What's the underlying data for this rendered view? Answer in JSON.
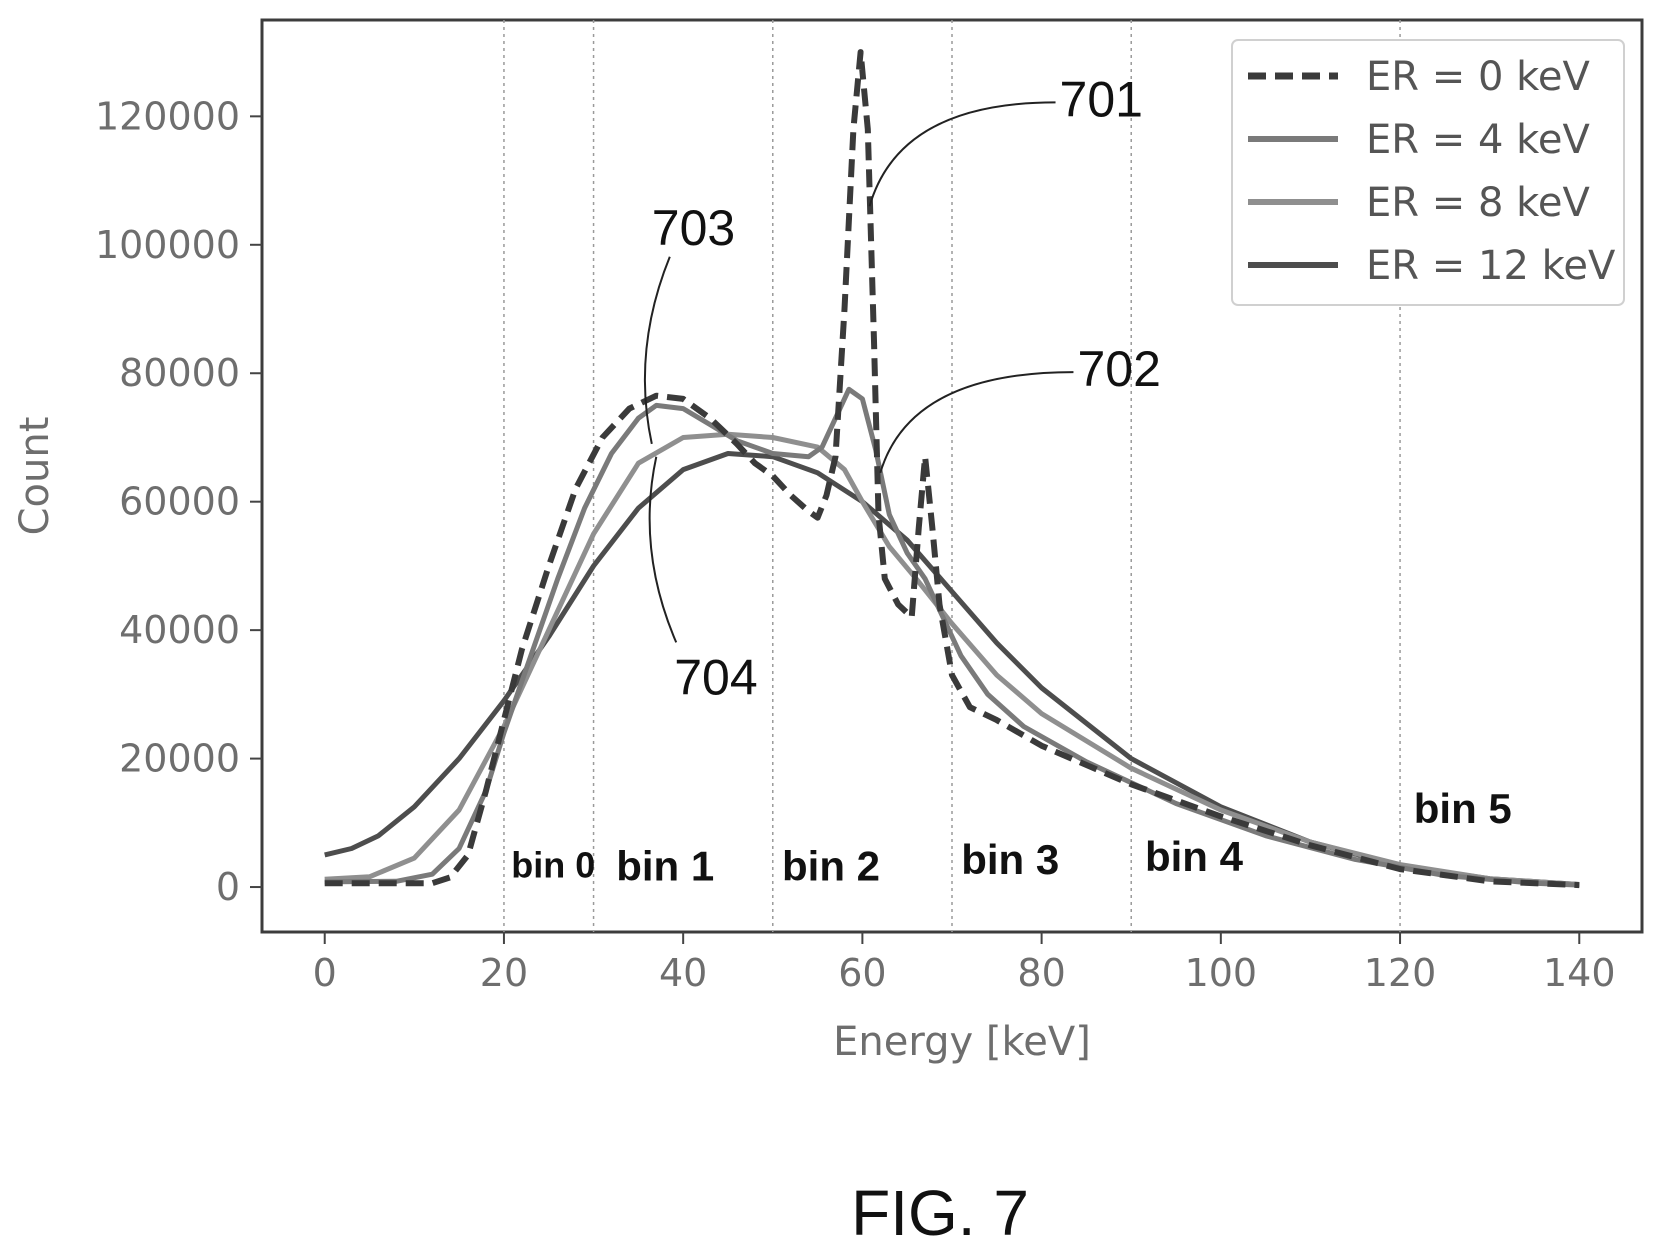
{
  "figure_caption": "FIG. 7",
  "chart_data": {
    "type": "line",
    "title": "",
    "xlabel": "Energy [keV]",
    "ylabel": "Count",
    "xlim": [
      -7,
      147
    ],
    "ylim": [
      -7000,
      135000
    ],
    "x_ticks": [
      0,
      20,
      40,
      60,
      80,
      100,
      120,
      140
    ],
    "y_ticks": [
      0,
      20000,
      40000,
      60000,
      80000,
      100000,
      120000
    ],
    "grid": false,
    "legend_placement": "top-right",
    "bin_boundaries": [
      20,
      30,
      50,
      70,
      90,
      120
    ],
    "bin_labels": [
      {
        "label": "bin 0",
        "x": 25.5,
        "y": 1500
      },
      {
        "label": "bin 1",
        "x": 38,
        "y": 1000
      },
      {
        "label": "bin 2",
        "x": 56.5,
        "y": 1000
      },
      {
        "label": "bin 3",
        "x": 76.5,
        "y": 2000
      },
      {
        "label": "bin 4",
        "x": 97,
        "y": 2500
      },
      {
        "label": "bin 5",
        "x": 127,
        "y": 10000
      }
    ],
    "annotations": [
      {
        "label": "701",
        "x": 82,
        "y": 120000,
        "target_x": 60.8,
        "target_y": 106000
      },
      {
        "label": "702",
        "x": 84,
        "y": 78000,
        "target_x": 62,
        "target_y": 64500
      },
      {
        "label": "703",
        "x": 36.5,
        "y": 100000,
        "target_x": 36.5,
        "target_y": 69000
      },
      {
        "label": "704",
        "x": 39,
        "y": 30000,
        "target_x": 37,
        "target_y": 67000
      }
    ],
    "series": [
      {
        "name": "ER = 0 keV",
        "style": "dashed",
        "color": "#3a3a3a",
        "points": [
          [
            0,
            600
          ],
          [
            12,
            600
          ],
          [
            14,
            1500
          ],
          [
            16,
            5000
          ],
          [
            18,
            15000
          ],
          [
            20,
            26000
          ],
          [
            22,
            37000
          ],
          [
            25,
            50000
          ],
          [
            28,
            62000
          ],
          [
            31,
            70000
          ],
          [
            34,
            74500
          ],
          [
            37,
            76500
          ],
          [
            40,
            76000
          ],
          [
            43,
            73000
          ],
          [
            46,
            69000
          ],
          [
            48,
            66000
          ],
          [
            50,
            64000
          ],
          [
            52,
            61000
          ],
          [
            54,
            58500
          ],
          [
            55,
            57500
          ],
          [
            56,
            61000
          ],
          [
            57,
            67000
          ],
          [
            58,
            90000
          ],
          [
            59,
            118000
          ],
          [
            59.8,
            130000
          ],
          [
            60.6,
            118000
          ],
          [
            61.3,
            85000
          ],
          [
            61.8,
            58000
          ],
          [
            62.5,
            48000
          ],
          [
            64,
            44000
          ],
          [
            65.5,
            42000
          ],
          [
            66.3,
            56000
          ],
          [
            67,
            67000
          ],
          [
            67.8,
            56000
          ],
          [
            68.6,
            44000
          ],
          [
            70,
            33000
          ],
          [
            72,
            28000
          ],
          [
            75,
            26000
          ],
          [
            80,
            22000
          ],
          [
            90,
            16000
          ],
          [
            100,
            11000
          ],
          [
            110,
            6500
          ],
          [
            120,
            2800
          ],
          [
            130,
            900
          ],
          [
            140,
            300
          ]
        ]
      },
      {
        "name": "ER = 4 keV",
        "style": "solid",
        "color": "#7a7a7a",
        "points": [
          [
            0,
            800
          ],
          [
            8,
            900
          ],
          [
            12,
            2000
          ],
          [
            15,
            6000
          ],
          [
            18,
            15000
          ],
          [
            20,
            24000
          ],
          [
            23,
            36000
          ],
          [
            26,
            48000
          ],
          [
            29,
            59000
          ],
          [
            32,
            67500
          ],
          [
            35,
            73000
          ],
          [
            37,
            75000
          ],
          [
            40,
            74500
          ],
          [
            43,
            72000
          ],
          [
            46,
            69500
          ],
          [
            50,
            67500
          ],
          [
            54,
            67000
          ],
          [
            55.5,
            68500
          ],
          [
            57,
            73000
          ],
          [
            58.5,
            77500
          ],
          [
            60,
            76000
          ],
          [
            61.5,
            68000
          ],
          [
            63,
            58000
          ],
          [
            65,
            52000
          ],
          [
            67,
            48000
          ],
          [
            69,
            42000
          ],
          [
            71,
            36000
          ],
          [
            74,
            30000
          ],
          [
            78,
            25000
          ],
          [
            85,
            19500
          ],
          [
            95,
            13000
          ],
          [
            105,
            8000
          ],
          [
            115,
            4300
          ],
          [
            125,
            1800
          ],
          [
            135,
            600
          ],
          [
            140,
            300
          ]
        ]
      },
      {
        "name": "ER = 8 keV",
        "style": "solid",
        "color": "#8f8f8f",
        "points": [
          [
            0,
            1200
          ],
          [
            5,
            1600
          ],
          [
            10,
            4500
          ],
          [
            15,
            12000
          ],
          [
            20,
            25000
          ],
          [
            25,
            40000
          ],
          [
            30,
            55000
          ],
          [
            35,
            66000
          ],
          [
            40,
            70000
          ],
          [
            45,
            70500
          ],
          [
            50,
            70000
          ],
          [
            55,
            68500
          ],
          [
            58,
            65000
          ],
          [
            60,
            60000
          ],
          [
            63,
            53000
          ],
          [
            66,
            48000
          ],
          [
            70,
            41000
          ],
          [
            75,
            33000
          ],
          [
            80,
            27000
          ],
          [
            90,
            18500
          ],
          [
            100,
            12000
          ],
          [
            110,
            7000
          ],
          [
            120,
            3500
          ],
          [
            130,
            1300
          ],
          [
            140,
            400
          ]
        ]
      },
      {
        "name": "ER = 12 keV",
        "style": "solid",
        "color": "#4d4d4d",
        "points": [
          [
            0,
            5000
          ],
          [
            3,
            6000
          ],
          [
            6,
            8000
          ],
          [
            10,
            12500
          ],
          [
            15,
            20000
          ],
          [
            20,
            29000
          ],
          [
            25,
            39000
          ],
          [
            30,
            50000
          ],
          [
            35,
            59000
          ],
          [
            40,
            65000
          ],
          [
            45,
            67500
          ],
          [
            50,
            67000
          ],
          [
            55,
            64500
          ],
          [
            60,
            60000
          ],
          [
            65,
            54000
          ],
          [
            70,
            46000
          ],
          [
            75,
            38000
          ],
          [
            80,
            31000
          ],
          [
            90,
            20000
          ],
          [
            100,
            12500
          ],
          [
            110,
            7000
          ],
          [
            120,
            3300
          ],
          [
            130,
            1300
          ],
          [
            140,
            400
          ]
        ]
      }
    ]
  }
}
